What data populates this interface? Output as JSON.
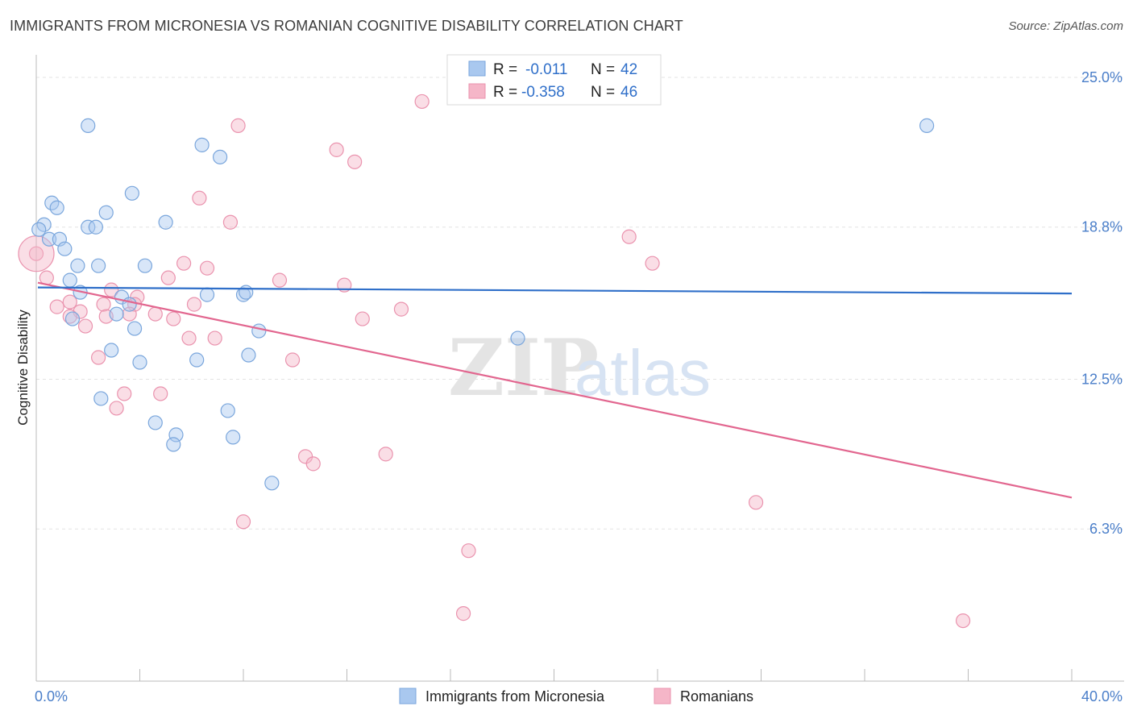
{
  "header": {
    "title": "IMMIGRANTS FROM MICRONESIA VS ROMANIAN COGNITIVE DISABILITY CORRELATION CHART",
    "source": "Source: ZipAtlas.com"
  },
  "watermark": {
    "zip": "ZIP",
    "atlas": "atlas"
  },
  "legend_top": [
    {
      "r_label": "R =",
      "r_value": "-0.011",
      "n_label": "N =",
      "n_value": "42",
      "color": "#a9c8ef"
    },
    {
      "r_label": "R =",
      "r_value": "-0.358",
      "n_label": "N =",
      "n_value": "46",
      "color": "#f5b6c8"
    }
  ],
  "legend_bottom": [
    {
      "label": "Immigrants from Micronesia",
      "color": "#a9c8ef"
    },
    {
      "label": "Romanians",
      "color": "#f5b6c8"
    }
  ],
  "colors": {
    "blue_fill": "#a9c8ef",
    "blue_stroke": "#7aa6dc",
    "blue_line": "#2f6fc9",
    "pink_fill": "#f5b6c8",
    "pink_stroke": "#ea93ae",
    "pink_line": "#e2668f",
    "tick_text": "#4a7ec9",
    "grid": "#e3e3e3"
  },
  "chart_data": {
    "type": "scatter",
    "title": "IMMIGRANTS FROM MICRONESIA VS ROMANIAN COGNITIVE DISABILITY CORRELATION CHART",
    "xlabel": "",
    "ylabel": "Cognitive Disability",
    "xlim": [
      0,
      40
    ],
    "ylim": [
      0,
      25.6
    ],
    "x_tick_labels": [
      {
        "value": 0,
        "label": "0.0%"
      },
      {
        "value": 40,
        "label": "40.0%"
      }
    ],
    "y_tick_labels": [
      {
        "value": 6.3,
        "label": "6.3%"
      },
      {
        "value": 12.5,
        "label": "12.5%"
      },
      {
        "value": 18.8,
        "label": "18.8%"
      },
      {
        "value": 25.0,
        "label": "25.0%"
      }
    ],
    "grid": "horizontal dashed",
    "legend_placement": "top-center",
    "series": [
      {
        "name": "Immigrants from Micronesia",
        "r": -0.011,
        "n": 42,
        "trend": {
          "x": [
            0,
            40
          ],
          "y": [
            16.3,
            16.05
          ]
        },
        "points": [
          [
            2.0,
            23.0
          ],
          [
            6.4,
            22.2
          ],
          [
            7.1,
            21.7
          ],
          [
            34.4,
            23.0
          ],
          [
            3.7,
            20.2
          ],
          [
            0.6,
            19.8
          ],
          [
            0.8,
            19.6
          ],
          [
            2.7,
            19.4
          ],
          [
            0.3,
            18.9
          ],
          [
            2.0,
            18.8
          ],
          [
            2.3,
            18.8
          ],
          [
            5.0,
            19.0
          ],
          [
            0.1,
            18.7
          ],
          [
            0.5,
            18.3
          ],
          [
            0.9,
            18.3
          ],
          [
            1.1,
            17.9
          ],
          [
            1.6,
            17.2
          ],
          [
            2.4,
            17.2
          ],
          [
            4.2,
            17.2
          ],
          [
            1.3,
            16.6
          ],
          [
            1.7,
            16.1
          ],
          [
            3.3,
            15.9
          ],
          [
            3.6,
            15.6
          ],
          [
            6.6,
            16.0
          ],
          [
            8.0,
            16.0
          ],
          [
            8.1,
            16.1
          ],
          [
            3.1,
            15.2
          ],
          [
            1.4,
            15.0
          ],
          [
            3.8,
            14.6
          ],
          [
            8.6,
            14.5
          ],
          [
            18.6,
            14.2
          ],
          [
            2.9,
            13.7
          ],
          [
            4.0,
            13.2
          ],
          [
            6.2,
            13.3
          ],
          [
            8.2,
            13.5
          ],
          [
            2.5,
            11.7
          ],
          [
            7.4,
            11.2
          ],
          [
            4.6,
            10.7
          ],
          [
            5.4,
            10.2
          ],
          [
            7.6,
            10.1
          ],
          [
            5.3,
            9.8
          ],
          [
            9.1,
            8.2
          ]
        ]
      },
      {
        "name": "Romanians",
        "r": -0.358,
        "n": 46,
        "trend": {
          "x": [
            0,
            40
          ],
          "y": [
            16.5,
            7.6
          ]
        },
        "points": [
          [
            14.9,
            24.0
          ],
          [
            7.8,
            23.0
          ],
          [
            11.6,
            22.0
          ],
          [
            12.3,
            21.5
          ],
          [
            6.3,
            20.0
          ],
          [
            7.5,
            19.0
          ],
          [
            22.9,
            18.4
          ],
          [
            0.0,
            17.7
          ],
          [
            5.7,
            17.3
          ],
          [
            6.6,
            17.1
          ],
          [
            23.8,
            17.3
          ],
          [
            0.4,
            16.7
          ],
          [
            5.1,
            16.7
          ],
          [
            9.4,
            16.6
          ],
          [
            11.9,
            16.4
          ],
          [
            2.9,
            16.2
          ],
          [
            1.3,
            15.7
          ],
          [
            3.9,
            15.9
          ],
          [
            2.6,
            15.6
          ],
          [
            3.8,
            15.6
          ],
          [
            6.1,
            15.6
          ],
          [
            0.8,
            15.5
          ],
          [
            1.7,
            15.3
          ],
          [
            1.3,
            15.1
          ],
          [
            2.7,
            15.1
          ],
          [
            3.6,
            15.2
          ],
          [
            4.6,
            15.2
          ],
          [
            5.3,
            15.0
          ],
          [
            14.1,
            15.4
          ],
          [
            12.6,
            15.0
          ],
          [
            1.9,
            14.7
          ],
          [
            5.9,
            14.2
          ],
          [
            6.9,
            14.2
          ],
          [
            2.4,
            13.4
          ],
          [
            9.9,
            13.3
          ],
          [
            3.4,
            11.9
          ],
          [
            4.8,
            11.9
          ],
          [
            3.1,
            11.3
          ],
          [
            10.4,
            9.3
          ],
          [
            10.7,
            9.0
          ],
          [
            13.5,
            9.4
          ],
          [
            27.8,
            7.4
          ],
          [
            8.0,
            6.6
          ],
          [
            16.7,
            5.4
          ],
          [
            16.5,
            2.8
          ],
          [
            35.8,
            2.5
          ]
        ]
      }
    ]
  }
}
